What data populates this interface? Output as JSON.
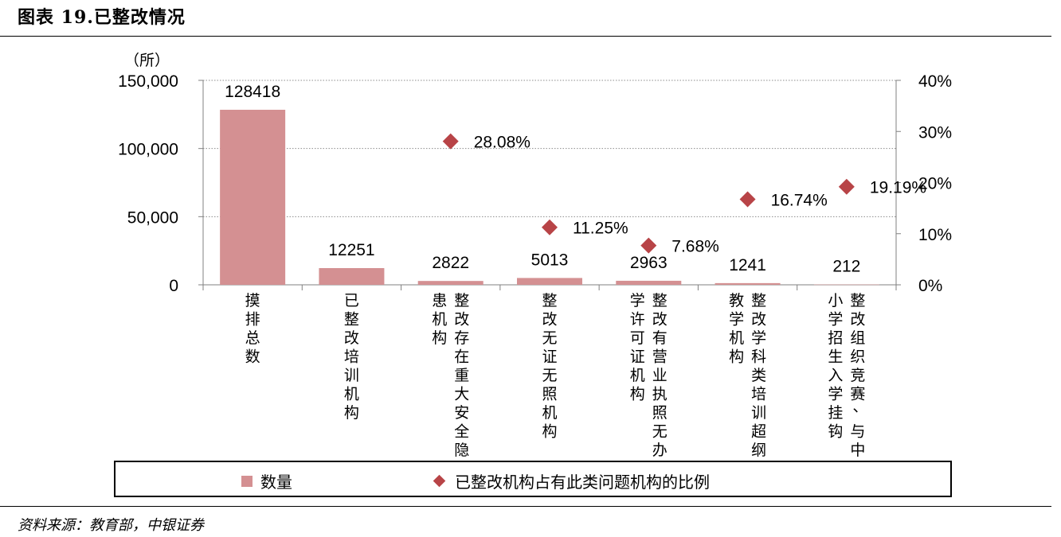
{
  "title": "图表 19.已整改情况",
  "source": "资料来源：教育部，中银证券",
  "chart_data": {
    "type": "bar",
    "categories": [
      [
        "摸排总数"
      ],
      [
        "已整改培训机构"
      ],
      [
        "整改存在重大安全隐",
        "患机构"
      ],
      [
        "整改无证无照机构"
      ],
      [
        "整改有营业执照无办",
        "学许可证机构"
      ],
      [
        "整改学科类培训超纲",
        "教学机构"
      ],
      [
        "整改组织竞赛、与中",
        "小学招生入学挂钩"
      ]
    ],
    "series": [
      {
        "name": "数量",
        "type": "bar",
        "axis": "left",
        "values": [
          128418,
          12251,
          2822,
          5013,
          2963,
          1241,
          212
        ],
        "labels": [
          "128418",
          "12251",
          "2822",
          "5013",
          "2963",
          "1241",
          "212"
        ],
        "color": "#d49092"
      },
      {
        "name": "已整改机构占有此类问题机构的比例",
        "type": "scatter",
        "axis": "right",
        "values": [
          null,
          null,
          28.08,
          11.25,
          7.68,
          16.74,
          19.19
        ],
        "labels": [
          null,
          null,
          "28.08%",
          "11.25%",
          "7.68%",
          "16.74%",
          "19.19%"
        ],
        "color": "#b84447"
      }
    ],
    "ylabel": "（所）",
    "ylim": [
      0,
      150000
    ],
    "y_ticks": [
      "0",
      "50,000",
      "100,000",
      "150,000"
    ],
    "y_tick_values": [
      0,
      50000,
      100000,
      150000
    ],
    "y2lim": [
      0,
      40
    ],
    "y2_ticks": [
      "0%",
      "10%",
      "20%",
      "30%",
      "40%"
    ],
    "y2_tick_values": [
      0,
      10,
      20,
      30,
      40
    ],
    "grid": true,
    "legend_position": "bottom"
  }
}
